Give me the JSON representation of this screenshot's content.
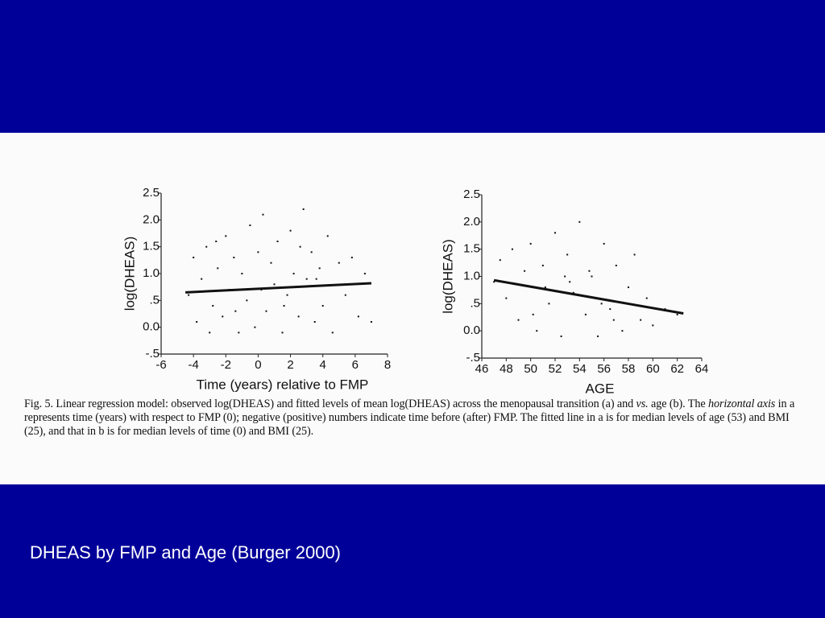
{
  "slide_title": "DHEAS by FMP and Age (Burger 2000)",
  "caption": [
    "Fig. 5. Linear regression model: observed log(DHEAS) and fitted levels of mean log(DHEAS) across the menopausal transition (a) and ",
    "vs.",
    " age (b). The ",
    "horizontal axis",
    " in a represents time (years) with respect to FMP (0); negative (positive) numbers indicate time before (after) FMP. The fitted line in a is for median levels of age (53) and BMI (25), and that in b is for median levels of time (0) and BMI (25)."
  ],
  "chart_data": [
    {
      "type": "scatter",
      "x_label": "Time (years) relative to FMP",
      "y_label": "log(DHEAS)",
      "xlim": [
        -6,
        8
      ],
      "xticks": [
        -6,
        -4,
        -2,
        0,
        2,
        4,
        6,
        8
      ],
      "ylim": [
        -0.5,
        2.5
      ],
      "yticks": [
        {
          "value": -0.5,
          "label": "-.5"
        },
        {
          "value": 0,
          "label": "0.0"
        },
        {
          "value": 0.5,
          "label": ".5"
        },
        {
          "value": 1,
          "label": "1.0"
        },
        1.5,
        {
          "value": 2,
          "label": "2.0"
        },
        2.5
      ],
      "color": "#111111",
      "points": {
        "x": [
          -4.3,
          -4,
          -3.8,
          -3.5,
          -3.2,
          -3,
          -2.8,
          -2.5,
          -2.2,
          -2,
          -1.8,
          -1.5,
          -1.2,
          -1,
          -0.7,
          -0.5,
          -0.2,
          0,
          0.3,
          0.5,
          0.8,
          1,
          1.2,
          1.5,
          1.8,
          2,
          2.2,
          2.5,
          2.8,
          3,
          3.3,
          3.5,
          3.8,
          4,
          4.3,
          4.6,
          5,
          5.4,
          5.8,
          6.2,
          6.6,
          7,
          0.2,
          1.6,
          -1.4,
          2.6,
          3.6,
          -2.6
        ],
        "values": [
          0.6,
          1.3,
          0.1,
          0.9,
          1.5,
          -0.1,
          0.4,
          1.1,
          0.2,
          1.7,
          0.7,
          1.3,
          -0.1,
          1.0,
          0.5,
          1.9,
          0.0,
          1.4,
          2.1,
          0.3,
          1.2,
          0.8,
          1.6,
          -0.1,
          0.6,
          1.8,
          1.0,
          0.2,
          2.2,
          0.9,
          1.4,
          0.1,
          1.1,
          0.4,
          1.7,
          -0.1,
          1.2,
          0.6,
          1.3,
          0.2,
          1.0,
          0.1,
          0.7,
          0.4,
          0.3,
          1.5,
          0.9,
          1.6
        ]
      },
      "fit": {
        "x": [
          -4.5,
          7
        ],
        "values": [
          0.65,
          0.82
        ]
      }
    },
    {
      "type": "scatter",
      "x_label": "AGE",
      "y_label": "log(DHEAS)",
      "xlim": [
        46,
        64
      ],
      "xticks": [
        46,
        48,
        50,
        52,
        54,
        56,
        58,
        60,
        62,
        64
      ],
      "ylim": [
        -0.5,
        2.5
      ],
      "yticks": [
        {
          "value": -0.5,
          "label": "-.5"
        },
        {
          "value": 0,
          "label": "0.0"
        },
        {
          "value": 0.5,
          "label": ".5"
        },
        {
          "value": 1,
          "label": "1.0"
        },
        1.5,
        {
          "value": 2,
          "label": "2.0"
        },
        2.5
      ],
      "color": "#111111",
      "points": {
        "x": [
          47,
          47.5,
          48,
          48.5,
          49,
          49.5,
          50,
          50.5,
          51,
          51.5,
          52,
          52.5,
          53,
          53.5,
          54,
          54.5,
          55,
          55.5,
          56,
          56.5,
          57,
          57.5,
          58,
          58.5,
          59,
          59.5,
          60,
          61,
          62,
          53.2,
          54.8,
          51.2,
          55.8,
          52.8,
          56.8,
          50.2
        ],
        "values": [
          0.9,
          1.3,
          0.6,
          1.5,
          0.2,
          1.1,
          1.6,
          0.0,
          1.2,
          0.5,
          1.8,
          -0.1,
          1.4,
          0.7,
          2.0,
          0.3,
          1.0,
          -0.1,
          1.6,
          0.4,
          1.2,
          0.0,
          0.8,
          1.4,
          0.2,
          0.6,
          0.1,
          0.4,
          0.3,
          0.9,
          1.1,
          0.8,
          0.5,
          1.0,
          0.2,
          0.3
        ]
      },
      "fit": {
        "x": [
          47,
          62.5
        ],
        "values": [
          0.93,
          0.32
        ]
      }
    }
  ]
}
